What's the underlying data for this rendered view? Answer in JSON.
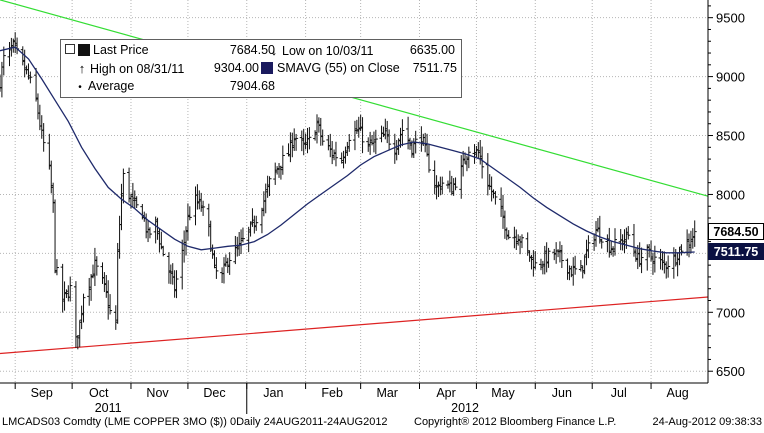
{
  "chart_data": {
    "type": "bar",
    "subtype": "ohlc",
    "x_ticks": [
      {
        "label": "Sep",
        "date": "2011-09-15"
      },
      {
        "label": "Oct",
        "date": "2011-10-15"
      },
      {
        "label": "Nov",
        "date": "2011-11-15"
      },
      {
        "label": "Dec",
        "date": "2011-12-15"
      },
      {
        "label": "Jan",
        "date": "2012-01-15"
      },
      {
        "label": "Feb",
        "date": "2012-02-15"
      },
      {
        "label": "Mar",
        "date": "2012-03-15"
      },
      {
        "label": "Apr",
        "date": "2012-04-15"
      },
      {
        "label": "May",
        "date": "2012-05-15"
      },
      {
        "label": "Jun",
        "date": "2012-06-15"
      },
      {
        "label": "Jul",
        "date": "2012-07-15"
      },
      {
        "label": "Aug",
        "date": "2012-08-15"
      }
    ],
    "year_labels": [
      {
        "label": "2011",
        "date": "2011-10-20"
      },
      {
        "label": "2012",
        "date": "2012-04-25"
      }
    ],
    "y_ticks": [
      6500,
      7000,
      7500,
      8000,
      8500,
      9000,
      9500
    ],
    "ylim": [
      6400,
      9650
    ],
    "xlim": [
      "2011-08-24",
      "2012-08-31"
    ],
    "grid": true,
    "price_keypoints": [
      [
        "2011-08-24",
        8960
      ],
      [
        "2011-08-26",
        9150
      ],
      [
        "2011-08-31",
        9250
      ],
      [
        "2011-09-05",
        9100
      ],
      [
        "2011-09-08",
        9000
      ],
      [
        "2011-09-12",
        8800
      ],
      [
        "2011-09-15",
        8500
      ],
      [
        "2011-09-19",
        8200
      ],
      [
        "2011-09-21",
        7900
      ],
      [
        "2011-09-22",
        7400
      ],
      [
        "2011-09-26",
        7100
      ],
      [
        "2011-09-30",
        7200
      ],
      [
        "2011-10-03",
        6750
      ],
      [
        "2011-10-05",
        6900
      ],
      [
        "2011-10-07",
        7150
      ],
      [
        "2011-10-11",
        7300
      ],
      [
        "2011-10-13",
        7400
      ],
      [
        "2011-10-17",
        7250
      ],
      [
        "2011-10-19",
        7150
      ],
      [
        "2011-10-21",
        7000
      ],
      [
        "2011-10-24",
        6900
      ],
      [
        "2011-10-25",
        7500
      ],
      [
        "2011-10-27",
        8000
      ],
      [
        "2011-10-28",
        8150
      ],
      [
        "2011-10-31",
        8000
      ],
      [
        "2011-11-03",
        7900
      ],
      [
        "2011-11-07",
        7850
      ],
      [
        "2011-11-10",
        7650
      ],
      [
        "2011-11-14",
        7750
      ],
      [
        "2011-11-17",
        7550
      ],
      [
        "2011-11-21",
        7350
      ],
      [
        "2011-11-24",
        7200
      ],
      [
        "2011-11-28",
        7500
      ],
      [
        "2011-12-01",
        7800
      ],
      [
        "2011-12-05",
        7950
      ],
      [
        "2011-12-08",
        7900
      ],
      [
        "2011-12-12",
        7700
      ],
      [
        "2011-12-15",
        7350
      ],
      [
        "2011-12-19",
        7300
      ],
      [
        "2011-12-22",
        7450
      ],
      [
        "2011-12-28",
        7550
      ],
      [
        "2012-01-03",
        7700
      ],
      [
        "2012-01-06",
        7800
      ],
      [
        "2012-01-10",
        7950
      ],
      [
        "2012-01-13",
        8100
      ],
      [
        "2012-01-18",
        8250
      ],
      [
        "2012-01-23",
        8350
      ],
      [
        "2012-01-26",
        8500
      ],
      [
        "2012-01-31",
        8400
      ],
      [
        "2012-02-03",
        8450
      ],
      [
        "2012-02-07",
        8600
      ],
      [
        "2012-02-10",
        8450
      ],
      [
        "2012-02-15",
        8350
      ],
      [
        "2012-02-20",
        8300
      ],
      [
        "2012-02-24",
        8500
      ],
      [
        "2012-02-29",
        8550
      ],
      [
        "2012-03-05",
        8400
      ],
      [
        "2012-03-09",
        8450
      ],
      [
        "2012-03-14",
        8500
      ],
      [
        "2012-03-19",
        8400
      ],
      [
        "2012-03-23",
        8550
      ],
      [
        "2012-03-28",
        8400
      ],
      [
        "2012-04-02",
        8500
      ],
      [
        "2012-04-05",
        8300
      ],
      [
        "2012-04-10",
        8050
      ],
      [
        "2012-04-13",
        8100
      ],
      [
        "2012-04-18",
        8050
      ],
      [
        "2012-04-23",
        8200
      ],
      [
        "2012-04-27",
        8400
      ],
      [
        "2012-05-02",
        8350
      ],
      [
        "2012-05-07",
        8100
      ],
      [
        "2012-05-11",
        7950
      ],
      [
        "2012-05-15",
        7800
      ],
      [
        "2012-05-18",
        7650
      ],
      [
        "2012-05-23",
        7650
      ],
      [
        "2012-05-28",
        7500
      ],
      [
        "2012-06-01",
        7400
      ],
      [
        "2012-06-06",
        7450
      ],
      [
        "2012-06-11",
        7500
      ],
      [
        "2012-06-15",
        7450
      ],
      [
        "2012-06-20",
        7350
      ],
      [
        "2012-06-25",
        7350
      ],
      [
        "2012-06-28",
        7500
      ],
      [
        "2012-07-03",
        7700
      ],
      [
        "2012-07-06",
        7650
      ],
      [
        "2012-07-11",
        7550
      ],
      [
        "2012-07-16",
        7600
      ],
      [
        "2012-07-20",
        7650
      ],
      [
        "2012-07-25",
        7450
      ],
      [
        "2012-07-30",
        7500
      ],
      [
        "2012-08-03",
        7450
      ],
      [
        "2012-08-08",
        7400
      ],
      [
        "2012-08-13",
        7450
      ],
      [
        "2012-08-17",
        7550
      ],
      [
        "2012-08-21",
        7600
      ],
      [
        "2012-08-24",
        7684.5
      ]
    ],
    "sma_keypoints": [
      [
        "2011-08-24",
        9220
      ],
      [
        "2011-09-01",
        9250
      ],
      [
        "2011-09-08",
        9150
      ],
      [
        "2011-09-15",
        8980
      ],
      [
        "2011-09-22",
        8800
      ],
      [
        "2011-09-29",
        8620
      ],
      [
        "2011-10-06",
        8400
      ],
      [
        "2011-10-13",
        8220
      ],
      [
        "2011-10-20",
        8060
      ],
      [
        "2011-10-27",
        7960
      ],
      [
        "2011-11-03",
        7880
      ],
      [
        "2011-11-10",
        7780
      ],
      [
        "2011-11-17",
        7700
      ],
      [
        "2011-11-24",
        7620
      ],
      [
        "2011-12-01",
        7560
      ],
      [
        "2011-12-08",
        7530
      ],
      [
        "2011-12-15",
        7545
      ],
      [
        "2011-12-22",
        7560
      ],
      [
        "2011-12-29",
        7570
      ],
      [
        "2012-01-05",
        7600
      ],
      [
        "2012-01-12",
        7660
      ],
      [
        "2012-01-19",
        7740
      ],
      [
        "2012-01-26",
        7830
      ],
      [
        "2012-02-02",
        7920
      ],
      [
        "2012-02-09",
        8000
      ],
      [
        "2012-02-16",
        8080
      ],
      [
        "2012-02-23",
        8160
      ],
      [
        "2012-03-01",
        8250
      ],
      [
        "2012-03-08",
        8320
      ],
      [
        "2012-03-15",
        8370
      ],
      [
        "2012-03-22",
        8420
      ],
      [
        "2012-03-29",
        8445
      ],
      [
        "2012-04-05",
        8430
      ],
      [
        "2012-04-12",
        8400
      ],
      [
        "2012-04-19",
        8370
      ],
      [
        "2012-04-26",
        8340
      ],
      [
        "2012-05-03",
        8300
      ],
      [
        "2012-05-10",
        8220
      ],
      [
        "2012-05-17",
        8140
      ],
      [
        "2012-05-24",
        8060
      ],
      [
        "2012-05-31",
        7970
      ],
      [
        "2012-06-07",
        7890
      ],
      [
        "2012-06-14",
        7820
      ],
      [
        "2012-06-21",
        7750
      ],
      [
        "2012-06-28",
        7690
      ],
      [
        "2012-07-05",
        7640
      ],
      [
        "2012-07-12",
        7600
      ],
      [
        "2012-07-19",
        7570
      ],
      [
        "2012-07-26",
        7540
      ],
      [
        "2012-08-02",
        7520
      ],
      [
        "2012-08-09",
        7505
      ],
      [
        "2012-08-16",
        7505
      ],
      [
        "2012-08-24",
        7511.75
      ]
    ],
    "trendlines": [
      {
        "color": "#33dd33",
        "from": [
          "2011-08-22",
          9660
        ],
        "to": [
          "2012-08-31",
          7985
        ]
      },
      {
        "color": "#dd2222",
        "from": [
          "2011-08-24",
          6650
        ],
        "to": [
          "2012-08-31",
          7130
        ]
      }
    ],
    "series_colors": {
      "price": "#111111",
      "sma": "#1f2a6b",
      "average": "#000000"
    },
    "legend": {
      "last_price_label": "Last Price",
      "last_price_value": "7684.50",
      "low_label": "Low on 10/03/11",
      "low_value": "6635.00",
      "high_label": "High on 08/31/11",
      "high_value": "9304.00",
      "sma_label": "SMAVG (55) on Close",
      "sma_value": "7511.75",
      "average_label": "Average",
      "average_value": "7904.68"
    },
    "price_tags": [
      {
        "label": "7684.50",
        "value": 7684.5,
        "bg": "#ffffff",
        "fg": "#000000"
      },
      {
        "label": "7511.75",
        "value": 7511.75,
        "bg": "#0b1142",
        "fg": "#ffffff"
      }
    ]
  },
  "footer": {
    "ticker": "LMCADS03 Comdty (LME COPPER 3MO ($)) 0Daily 24AUG2011-24AUG2012",
    "copyright": "Copyright® 2012 Bloomberg Finance L.P.",
    "timestamp": "24-Aug-2012 09:38:33"
  }
}
